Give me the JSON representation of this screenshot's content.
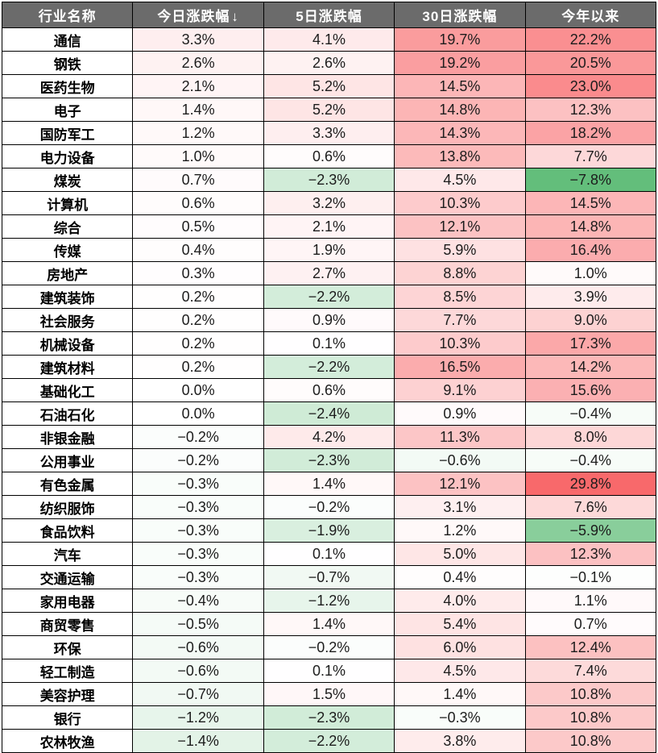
{
  "table": {
    "header_bg": "#6b6b6b",
    "header_text_color": "#ffffff",
    "border_color": "#000000",
    "columns": [
      {
        "label": "行业名称",
        "sort": ""
      },
      {
        "label": "今日涨跌幅",
        "sort": "↓"
      },
      {
        "label": "5日涨跌幅",
        "sort": ""
      },
      {
        "label": "30日涨跌幅",
        "sort": ""
      },
      {
        "label": "今年以来",
        "sort": ""
      }
    ]
  },
  "chart_data": {
    "type": "heatmap",
    "title": "",
    "row_header": "行业名称",
    "columns": [
      "今日涨跌幅",
      "5日涨跌幅",
      "30日涨跌幅",
      "今年以来"
    ],
    "value_unit": "%",
    "sort": {
      "column": "今日涨跌幅",
      "direction": "desc"
    },
    "color_scale": {
      "min": -7.8,
      "mid": 0,
      "max": 29.8,
      "min_color": "#63BE7B",
      "mid_color": "#FFFFFF",
      "max_color": "#F8696B"
    },
    "rows": [
      {
        "industry": "通信",
        "values": [
          3.3,
          4.1,
          19.7,
          22.2
        ]
      },
      {
        "industry": "钢铁",
        "values": [
          2.6,
          2.6,
          19.2,
          20.5
        ]
      },
      {
        "industry": "医药生物",
        "values": [
          2.1,
          5.2,
          14.5,
          23.0
        ]
      },
      {
        "industry": "电子",
        "values": [
          1.4,
          5.2,
          14.8,
          12.3
        ]
      },
      {
        "industry": "国防军工",
        "values": [
          1.2,
          3.3,
          14.3,
          18.2
        ]
      },
      {
        "industry": "电力设备",
        "values": [
          1.0,
          0.6,
          13.8,
          7.7
        ]
      },
      {
        "industry": "煤炭",
        "values": [
          0.7,
          -2.3,
          4.5,
          -7.8
        ]
      },
      {
        "industry": "计算机",
        "values": [
          0.6,
          3.2,
          10.3,
          14.5
        ]
      },
      {
        "industry": "综合",
        "values": [
          0.5,
          2.1,
          12.1,
          14.8
        ]
      },
      {
        "industry": "传媒",
        "values": [
          0.4,
          1.9,
          5.9,
          16.4
        ]
      },
      {
        "industry": "房地产",
        "values": [
          0.3,
          2.7,
          8.8,
          1.0
        ]
      },
      {
        "industry": "建筑装饰",
        "values": [
          0.2,
          -2.2,
          8.5,
          3.9
        ]
      },
      {
        "industry": "社会服务",
        "values": [
          0.2,
          0.9,
          7.7,
          9.0
        ]
      },
      {
        "industry": "机械设备",
        "values": [
          0.2,
          0.1,
          10.3,
          17.3
        ]
      },
      {
        "industry": "建筑材料",
        "values": [
          0.2,
          -2.2,
          16.5,
          14.2
        ]
      },
      {
        "industry": "基础化工",
        "values": [
          0.0,
          0.6,
          9.1,
          15.6
        ]
      },
      {
        "industry": "石油石化",
        "values": [
          0.0,
          -2.4,
          0.9,
          -0.4
        ]
      },
      {
        "industry": "非银金融",
        "values": [
          -0.2,
          4.2,
          11.3,
          8.0
        ]
      },
      {
        "industry": "公用事业",
        "values": [
          -0.2,
          -2.3,
          -0.6,
          -0.4
        ]
      },
      {
        "industry": "有色金属",
        "values": [
          -0.3,
          1.4,
          12.1,
          29.8
        ]
      },
      {
        "industry": "纺织服饰",
        "values": [
          -0.3,
          -0.2,
          3.1,
          7.6
        ]
      },
      {
        "industry": "食品饮料",
        "values": [
          -0.3,
          -1.9,
          1.2,
          -5.9
        ]
      },
      {
        "industry": "汽车",
        "values": [
          -0.3,
          0.1,
          5.0,
          12.3
        ]
      },
      {
        "industry": "交通运输",
        "values": [
          -0.3,
          -0.7,
          0.4,
          -0.1
        ]
      },
      {
        "industry": "家用电器",
        "values": [
          -0.4,
          -1.2,
          4.0,
          1.1
        ]
      },
      {
        "industry": "商贸零售",
        "values": [
          -0.5,
          1.4,
          5.4,
          0.7
        ]
      },
      {
        "industry": "环保",
        "values": [
          -0.6,
          -0.2,
          6.0,
          12.4
        ]
      },
      {
        "industry": "轻工制造",
        "values": [
          -0.6,
          0.1,
          4.5,
          7.4
        ]
      },
      {
        "industry": "美容护理",
        "values": [
          -0.7,
          1.5,
          1.4,
          10.8
        ]
      },
      {
        "industry": "银行",
        "values": [
          -1.2,
          -2.3,
          -0.3,
          10.8
        ]
      },
      {
        "industry": "农林牧渔",
        "values": [
          -1.4,
          -2.2,
          3.8,
          10.8
        ]
      }
    ]
  }
}
